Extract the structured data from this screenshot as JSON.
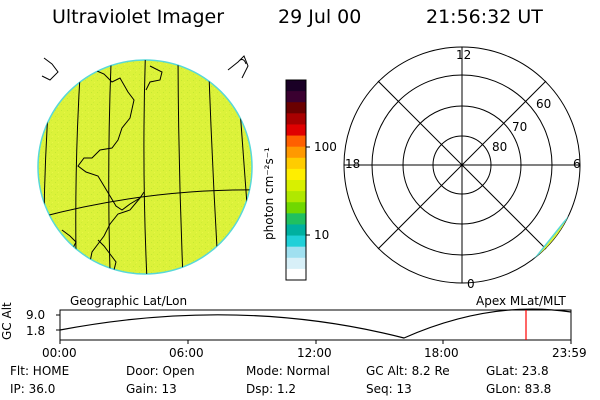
{
  "header": {
    "title": "Ultraviolet Imager",
    "date": "29 Jul 00",
    "time": "21:56:32 UT"
  },
  "colorbar": {
    "unit_label": "photon cm⁻²s⁻¹",
    "ticks": [
      "100",
      "10"
    ],
    "colors_top_to_bottom": [
      "#1a0026",
      "#3a0030",
      "#6a0000",
      "#a80000",
      "#e00000",
      "#ff6000",
      "#ff9900",
      "#ffcc00",
      "#ffee00",
      "#d8f000",
      "#b0e800",
      "#70d800",
      "#20c060",
      "#00b0a0",
      "#20d0d8",
      "#a0e0f0",
      "#d8f0f8",
      "#ffffff"
    ]
  },
  "geographic_panel": {
    "label": "Geographic Lat/Lon",
    "fill_color": "#dcf23a"
  },
  "polar_panel": {
    "label": "Apex MLat/MLT",
    "mlt_labels": {
      "top": "12",
      "left": "18",
      "right": "6",
      "bottom": "0"
    },
    "lat_labels": [
      "60",
      "70",
      "80"
    ],
    "fill_color": "#dcf23a"
  },
  "altitude_plot": {
    "ylabel": "GC Alt",
    "y_ticks": [
      "9.0",
      "1.8"
    ],
    "x_ticks": [
      "00:00",
      "06:00",
      "12:00",
      "18:00",
      "23:59"
    ],
    "current_time_color": "#ff0000"
  },
  "info": {
    "flt": "Flt: HOME",
    "ip": "IP: 36.0",
    "door": "Door: Open",
    "gain": "Gain: 13",
    "mode": "Mode: Normal",
    "dsp": "Dsp:    1.2",
    "gc_alt": "GC Alt: 8.2 Re",
    "seq": "Seq: 13",
    "glat": "GLat:  23.8",
    "glon": "GLon:  83.8"
  }
}
